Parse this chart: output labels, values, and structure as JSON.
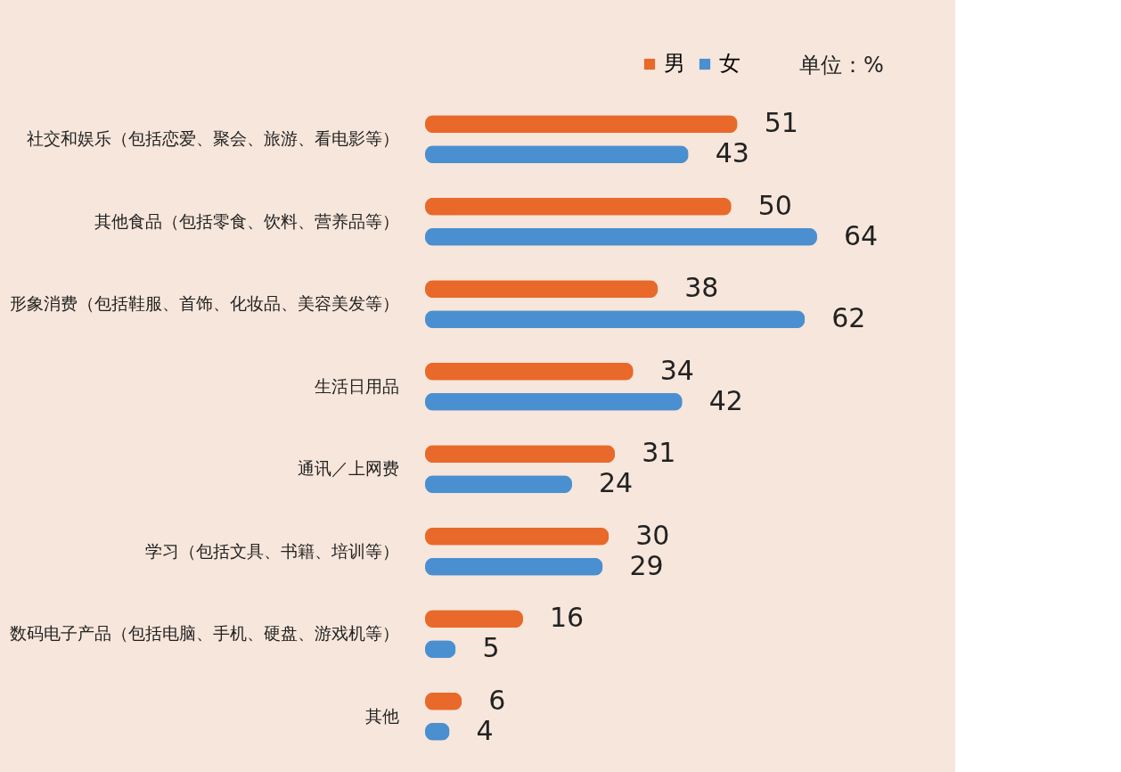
{
  "chart_data": {
    "type": "bar",
    "orientation": "horizontal",
    "data_labels": true,
    "legend": "top right",
    "categories": [
      "社交和娱乐（包括恋爱、聚会、旅游、看电影等）",
      "其他食品（包括零食、饮料、营养品等）",
      "形象消费（包括鞋服、首饰、化妆品、美容美发等）",
      "生活日用品",
      "通讯／上网费",
      "学习（包括文具、书籍、培训等）",
      "数码电子产品（包括电脑、手机、硬盘、游戏机等）",
      "其他"
    ],
    "series": [
      {
        "name": "男",
        "color": "#e8692a",
        "values": [
          51,
          50,
          38,
          34,
          31,
          30,
          16,
          6
        ]
      },
      {
        "name": "女",
        "color": "#4a8fd0",
        "values": [
          43,
          64,
          62,
          42,
          24,
          29,
          5,
          4
        ]
      }
    ],
    "annotations": [
      "单位：%"
    ]
  }
}
